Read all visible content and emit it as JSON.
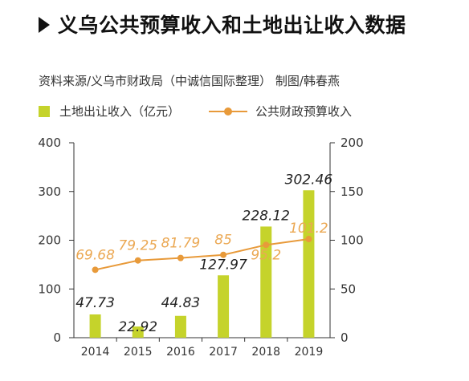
{
  "header": {
    "title": "义乌公共预算收入和土地出让收入数据",
    "source": "资料来源/义乌市财政局（中诚信国际整理） 制图/韩春燕"
  },
  "colors": {
    "bar": "#c5d32b",
    "line": "#e89a3a",
    "line_label": "#eba853"
  },
  "chart_data": {
    "type": "bar",
    "categories": [
      "2014",
      "2015",
      "2016",
      "2017",
      "2018",
      "2019"
    ],
    "series": [
      {
        "name": "土地出让收入（亿元）",
        "type": "bar",
        "axis": "left",
        "values": [
          47.73,
          22.92,
          44.83,
          127.97,
          228.12,
          302.46
        ]
      },
      {
        "name": "公共财政预算收入",
        "type": "line",
        "axis": "right",
        "values": [
          69.68,
          79.25,
          81.79,
          85,
          95.2,
          101.2
        ]
      }
    ],
    "y_left": {
      "ylim": [
        0,
        400
      ],
      "ticks": [
        "0",
        "100",
        "200",
        "300",
        "400"
      ]
    },
    "y_right": {
      "ylim": [
        0,
        200
      ],
      "ticks": [
        "0",
        "50",
        "100",
        "150",
        "200"
      ]
    },
    "grid": false,
    "legend": "top-left"
  }
}
